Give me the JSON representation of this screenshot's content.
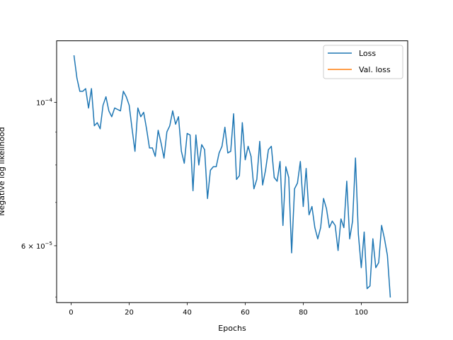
{
  "chart_data": {
    "type": "line",
    "title": "",
    "xlabel": "Epochs",
    "ylabel": "Negative log likelihood",
    "yscale": "log",
    "xlim": [
      -5,
      116
    ],
    "ylim": [
      4.9e-05,
      0.0001245
    ],
    "grid": false,
    "legend_placement": "top-right",
    "x_ticks": [
      {
        "value": 0,
        "label": "0"
      },
      {
        "value": 20,
        "label": "20"
      },
      {
        "value": 40,
        "label": "40"
      },
      {
        "value": 60,
        "label": "60"
      },
      {
        "value": 80,
        "label": "80"
      },
      {
        "value": 100,
        "label": "100"
      }
    ],
    "y_ticks": [
      {
        "value": 6e-05,
        "mant": "6 × 10",
        "exp": "−5"
      },
      {
        "value": 0.0001,
        "mant": "10",
        "exp": "−4"
      }
    ],
    "series": [
      {
        "name": "Loss",
        "color": "#1f77b4",
        "x": [
          1,
          2,
          3,
          4,
          5,
          6,
          7,
          8,
          9,
          10,
          11,
          12,
          13,
          14,
          15,
          16,
          17,
          18,
          19,
          20,
          21,
          22,
          23,
          24,
          25,
          26,
          27,
          28,
          29,
          30,
          31,
          32,
          33,
          34,
          35,
          36,
          37,
          38,
          39,
          40,
          41,
          42,
          43,
          44,
          45,
          46,
          47,
          48,
          49,
          50,
          51,
          52,
          53,
          54,
          55,
          56,
          57,
          58,
          59,
          60,
          61,
          62,
          63,
          64,
          65,
          66,
          67,
          68,
          69,
          70,
          71,
          72,
          73,
          74,
          75,
          76,
          77,
          78,
          79,
          80,
          81,
          82,
          83,
          84,
          85,
          86,
          87,
          88,
          89,
          90,
          91,
          92,
          93,
          94,
          95,
          96,
          97,
          98,
          99,
          100,
          101,
          102,
          103,
          104,
          105,
          106,
          107,
          108,
          109,
          110
        ],
        "values": [
          0.000118,
          0.000109,
          0.000104,
          0.000104,
          0.000105,
          9.8e-05,
          0.000105,
          9.2e-05,
          9.3e-05,
          9.1e-05,
          9.9e-05,
          0.000102,
          9.7e-05,
          9.5e-05,
          9.8e-05,
          9.75e-05,
          9.7e-05,
          0.000104,
          0.000102,
          9.9e-05,
          9.1e-05,
          8.4e-05,
          9.8e-05,
          9.5e-05,
          9.65e-05,
          9.1e-05,
          8.5e-05,
          8.5e-05,
          8.25e-05,
          9.05e-05,
          8.65e-05,
          8.2e-05,
          9e-05,
          9.2e-05,
          9.7e-05,
          9.25e-05,
          9.5e-05,
          8.4e-05,
          8.05e-05,
          8.95e-05,
          8.9e-05,
          7.3e-05,
          8.9e-05,
          8e-05,
          8.6e-05,
          8.45e-05,
          7.1e-05,
          7.85e-05,
          7.95e-05,
          7.95e-05,
          8.35e-05,
          8.55e-05,
          9.15e-05,
          8.35e-05,
          8.4e-05,
          9.6e-05,
          7.6e-05,
          7.7e-05,
          9.3e-05,
          8.15e-05,
          8.55e-05,
          8.25e-05,
          7.35e-05,
          7.6e-05,
          8.7e-05,
          7.45e-05,
          7.85e-05,
          8.45e-05,
          8.55e-05,
          7.65e-05,
          7.55e-05,
          8.1e-05,
          6.45e-05,
          7.95e-05,
          7.65e-05,
          5.85e-05,
          7.35e-05,
          7.5e-05,
          8.1e-05,
          6.9e-05,
          7.9e-05,
          6.7e-05,
          6.9e-05,
          6.4e-05,
          6.15e-05,
          6.4e-05,
          7.1e-05,
          6.85e-05,
          6.4e-05,
          6.55e-05,
          6.45e-05,
          5.9e-05,
          6.6e-05,
          6.4e-05,
          7.55e-05,
          6.15e-05,
          6.55e-05,
          8.2e-05,
          6.25e-05,
          5.55e-05,
          6.3e-05,
          5.15e-05,
          5.2e-05,
          6.15e-05,
          5.55e-05,
          5.65e-05,
          6.45e-05,
          6.15e-05,
          5.8e-05,
          5e-05
        ]
      },
      {
        "name": "Val. loss",
        "color": "#ff7f0e",
        "x": [],
        "values": []
      }
    ]
  }
}
